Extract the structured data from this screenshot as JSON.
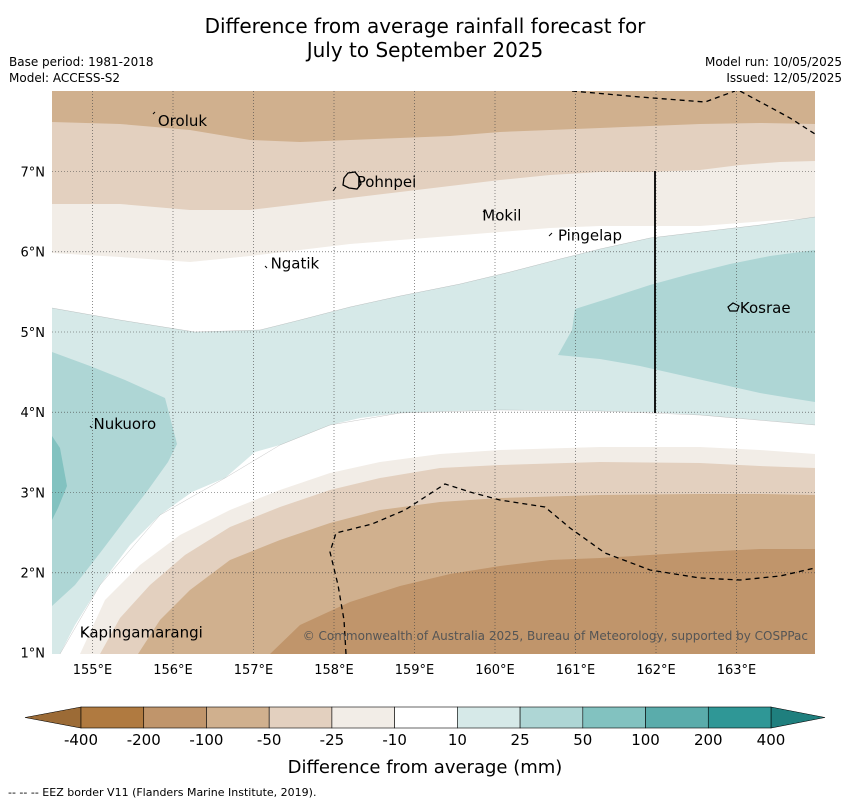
{
  "title_line1": "Difference from average rainfall forecast for",
  "title_line2": "July to September 2025",
  "base_period": "Base period: 1981-2018",
  "model": "Model: ACCESS-S2",
  "model_run": "Model run: 10/05/2025",
  "issued": "Issued: 12/05/2025",
  "copyright": "© Commonwealth of Australia 2025, Bureau of Meteorology, supported by COSPPac",
  "colorbar_label": "Difference from average (mm)",
  "footer": "--  --  -- EEZ border V11 (Flanders Marine Institute, 2019).",
  "lon_ticks": [
    "155°E",
    "156°E",
    "157°E",
    "158°E",
    "159°E",
    "160°E",
    "161°E",
    "162°E",
    "163°E"
  ],
  "lat_ticks": [
    "7°N",
    "6°N",
    "5°N",
    "4°N",
    "3°N",
    "2°N",
    "1°N"
  ],
  "places": [
    {
      "name": "Oroluk",
      "lon": 155.75,
      "lat": 7.63
    },
    {
      "name": "Pohnpei",
      "lon": 158.22,
      "lat": 6.87
    },
    {
      "name": "Mokil",
      "lon": 159.78,
      "lat": 6.45
    },
    {
      "name": "Pingelap",
      "lon": 160.72,
      "lat": 6.2
    },
    {
      "name": "Ngatik",
      "lon": 157.15,
      "lat": 5.85
    },
    {
      "name": "Kosrae",
      "lon": 162.98,
      "lat": 5.3
    },
    {
      "name": "Nukuoro",
      "lon": 154.95,
      "lat": 3.85
    },
    {
      "name": "Kapingamarangi",
      "lon": 154.78,
      "lat": 1.25
    }
  ],
  "colorbar": {
    "ticks": [
      "-400",
      "-200",
      "-100",
      "-50",
      "-25",
      "-10",
      "10",
      "25",
      "50",
      "100",
      "200",
      "400"
    ],
    "colors": [
      "#b07a40",
      "#c0956b",
      "#d0b08e",
      "#e3d0bf",
      "#f2ede7",
      "#ffffff",
      "#d6e9e8",
      "#aed6d5",
      "#82c2c0",
      "#5aacab",
      "#2f9796"
    ],
    "under_color": "#9c6b36",
    "over_color": "#1f7f7e"
  }
}
